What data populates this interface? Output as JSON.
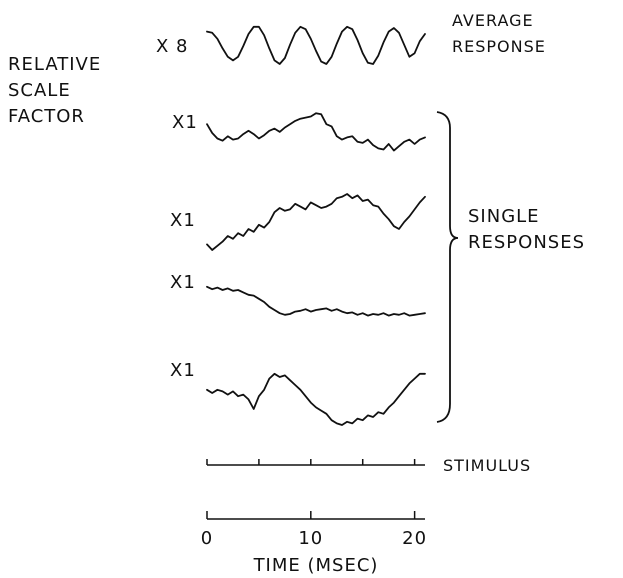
{
  "chart_data": {
    "type": "line",
    "title": "",
    "xlabel": "TIME (MSEC)",
    "x_ticks": [
      "0",
      "10",
      "20"
    ],
    "xlim": [
      0,
      21
    ],
    "side_label": [
      "RELATIVE",
      "SCALE",
      "FACTOR"
    ],
    "average_label": [
      "AVERAGE",
      "RESPONSE"
    ],
    "group_label": [
      "SINGLE",
      "RESPONSES"
    ],
    "stimulus_label": "STIMULUS",
    "stimulus_ticks": [
      0,
      5,
      10,
      15,
      20
    ],
    "series": [
      {
        "scale": "X 8",
        "group": "average",
        "x": [
          0,
          0.5,
          1,
          1.5,
          2,
          2.5,
          3,
          3.5,
          4,
          4.5,
          5,
          5.5,
          6,
          6.5,
          7,
          7.5,
          8,
          8.5,
          9,
          9.5,
          10,
          10.5,
          11,
          11.5,
          12,
          12.5,
          13,
          13.5,
          14,
          14.5,
          15,
          15.5,
          16,
          16.5,
          17,
          17.5,
          18,
          18.5,
          19,
          19.5,
          20,
          20.5,
          21
        ],
        "y": [
          0.6,
          0.55,
          0.3,
          -0.1,
          -0.45,
          -0.6,
          -0.45,
          0.0,
          0.5,
          0.8,
          0.8,
          0.45,
          -0.1,
          -0.6,
          -0.75,
          -0.5,
          0.05,
          0.55,
          0.8,
          0.7,
          0.3,
          -0.2,
          -0.65,
          -0.75,
          -0.45,
          0.1,
          0.6,
          0.8,
          0.7,
          0.25,
          -0.3,
          -0.7,
          -0.75,
          -0.4,
          0.15,
          0.6,
          0.75,
          0.55,
          0.05,
          -0.45,
          -0.3,
          0.2,
          0.5
        ]
      },
      {
        "scale": "X1",
        "group": "single",
        "x": [
          0,
          0.5,
          1,
          1.5,
          2,
          2.5,
          3,
          3.5,
          4,
          4.5,
          5,
          5.5,
          6,
          6.5,
          7,
          7.5,
          8,
          8.5,
          9,
          9.5,
          10,
          10.5,
          11,
          11.5,
          12,
          12.5,
          13,
          13.5,
          14,
          14.5,
          15,
          15.5,
          16,
          16.5,
          17,
          17.5,
          18,
          18.5,
          19,
          19.5,
          20,
          20.5,
          21
        ],
        "y": [
          0.4,
          0.0,
          -0.25,
          -0.35,
          -0.15,
          -0.3,
          -0.25,
          -0.05,
          0.1,
          -0.05,
          -0.25,
          -0.1,
          0.1,
          0.2,
          0.05,
          0.25,
          0.4,
          0.55,
          0.65,
          0.7,
          0.75,
          0.9,
          0.85,
          0.4,
          0.3,
          -0.15,
          -0.3,
          -0.2,
          -0.15,
          -0.4,
          -0.45,
          -0.3,
          -0.55,
          -0.7,
          -0.75,
          -0.5,
          -0.8,
          -0.6,
          -0.4,
          -0.3,
          -0.5,
          -0.3,
          -0.2
        ]
      },
      {
        "scale": "X1",
        "group": "single",
        "x": [
          0,
          0.5,
          1,
          1.5,
          2,
          2.5,
          3,
          3.5,
          4,
          4.5,
          5,
          5.5,
          6,
          6.5,
          7,
          7.5,
          8,
          8.5,
          9,
          9.5,
          10,
          10.5,
          11,
          11.5,
          12,
          12.5,
          13,
          13.5,
          14,
          14.5,
          15,
          15.5,
          16,
          16.5,
          17,
          17.5,
          18,
          18.5,
          19,
          19.5,
          20,
          20.5,
          21
        ],
        "y": [
          -0.8,
          -1.0,
          -0.85,
          -0.7,
          -0.5,
          -0.6,
          -0.4,
          -0.5,
          -0.25,
          -0.35,
          -0.1,
          -0.2,
          0.0,
          0.35,
          0.5,
          0.4,
          0.45,
          0.65,
          0.55,
          0.45,
          0.7,
          0.6,
          0.5,
          0.55,
          0.65,
          0.85,
          0.9,
          1.0,
          0.85,
          0.95,
          0.75,
          0.8,
          0.6,
          0.55,
          0.3,
          0.1,
          -0.15,
          -0.25,
          0.0,
          0.2,
          0.45,
          0.7,
          0.9
        ]
      },
      {
        "scale": "X1",
        "group": "single",
        "x": [
          0,
          0.5,
          1,
          1.5,
          2,
          2.5,
          3,
          3.5,
          4,
          4.5,
          5,
          5.5,
          6,
          6.5,
          7,
          7.5,
          8,
          8.5,
          9,
          9.5,
          10,
          10.5,
          11,
          11.5,
          12,
          12.5,
          13,
          13.5,
          14,
          14.5,
          15,
          15.5,
          16,
          16.5,
          17,
          17.5,
          18,
          18.5,
          19,
          19.5,
          20,
          20.5,
          21
        ],
        "y": [
          0.95,
          0.8,
          0.9,
          0.75,
          0.85,
          0.7,
          0.75,
          0.6,
          0.45,
          0.4,
          0.2,
          0.0,
          -0.3,
          -0.5,
          -0.7,
          -0.8,
          -0.75,
          -0.6,
          -0.55,
          -0.45,
          -0.6,
          -0.5,
          -0.45,
          -0.4,
          -0.55,
          -0.45,
          -0.6,
          -0.7,
          -0.65,
          -0.8,
          -0.7,
          -0.85,
          -0.75,
          -0.8,
          -0.7,
          -0.85,
          -0.75,
          -0.8,
          -0.7,
          -0.85,
          -0.8,
          -0.75,
          -0.7
        ]
      },
      {
        "scale": "X1",
        "group": "single",
        "x": [
          0,
          0.5,
          1,
          1.5,
          2,
          2.5,
          3,
          3.5,
          4,
          4.5,
          5,
          5.5,
          6,
          6.5,
          7,
          7.5,
          8,
          8.5,
          9,
          9.5,
          10,
          10.5,
          11,
          11.5,
          12,
          12.5,
          13,
          13.5,
          14,
          14.5,
          15,
          15.5,
          16,
          16.5,
          17,
          17.5,
          18,
          18.5,
          19,
          19.5,
          20,
          20.5,
          21
        ],
        "y": [
          0.1,
          0.0,
          0.1,
          0.05,
          -0.05,
          0.05,
          -0.1,
          -0.05,
          -0.2,
          -0.5,
          -0.1,
          0.1,
          0.45,
          0.6,
          0.5,
          0.55,
          0.4,
          0.25,
          0.1,
          -0.1,
          -0.3,
          -0.45,
          -0.55,
          -0.65,
          -0.85,
          -0.95,
          -1.0,
          -0.9,
          -0.95,
          -0.8,
          -0.85,
          -0.7,
          -0.75,
          -0.6,
          -0.65,
          -0.45,
          -0.3,
          -0.1,
          0.1,
          0.3,
          0.45,
          0.6,
          0.6
        ]
      }
    ]
  }
}
